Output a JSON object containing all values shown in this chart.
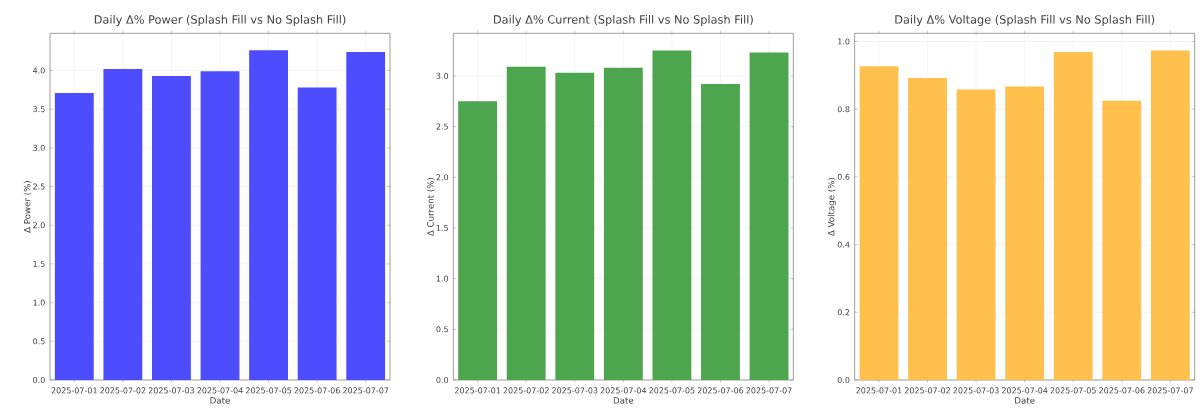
{
  "chart_data": [
    {
      "type": "bar",
      "title": "Daily Δ% Power (Splash Fill vs No Splash Fill)",
      "xlabel": "Date",
      "ylabel": "Δ Power (%)",
      "categories": [
        "2025-07-01",
        "2025-07-02",
        "2025-07-03",
        "2025-07-04",
        "2025-07-05",
        "2025-07-06",
        "2025-07-07"
      ],
      "values": [
        3.71,
        4.02,
        3.93,
        3.99,
        4.26,
        3.78,
        4.24
      ],
      "color": "#4d4dff",
      "ylim": [
        0,
        4.48
      ],
      "yticks": [
        {
          "value": 0,
          "label": "0.0"
        },
        0.5,
        {
          "value": 1,
          "label": "1.0"
        },
        1.5,
        {
          "value": 2,
          "label": "2.0"
        },
        2.5,
        {
          "value": 3,
          "label": "3.0"
        },
        3.5,
        {
          "value": 4,
          "label": "4.0"
        }
      ],
      "grid": true
    },
    {
      "type": "bar",
      "title": "Daily Δ% Current (Splash Fill vs No Splash Fill)",
      "xlabel": "Date",
      "ylabel": "Δ Current (%)",
      "categories": [
        "2025-07-01",
        "2025-07-02",
        "2025-07-03",
        "2025-07-04",
        "2025-07-05",
        "2025-07-06",
        "2025-07-07"
      ],
      "values": [
        2.75,
        3.09,
        3.03,
        3.08,
        3.25,
        2.92,
        3.23
      ],
      "color": "#4da64d",
      "ylim": [
        0,
        3.42
      ],
      "yticks": [
        {
          "value": 0,
          "label": "0.0"
        },
        0.5,
        {
          "value": 1,
          "label": "1.0"
        },
        1.5,
        {
          "value": 2,
          "label": "2.0"
        },
        2.5,
        {
          "value": 3,
          "label": "3.0"
        }
      ],
      "grid": true
    },
    {
      "type": "bar",
      "title": "Daily Δ% Voltage (Splash Fill vs No Splash Fill)",
      "xlabel": "Date",
      "ylabel": "Δ Voltage (%)",
      "categories": [
        "2025-07-01",
        "2025-07-02",
        "2025-07-03",
        "2025-07-04",
        "2025-07-05",
        "2025-07-06",
        "2025-07-07"
      ],
      "values": [
        0.927,
        0.892,
        0.858,
        0.867,
        0.969,
        0.825,
        0.973
      ],
      "color": "#ffc04d",
      "ylim": [
        0,
        1.024
      ],
      "yticks": [
        {
          "value": 0,
          "label": "0.0"
        },
        0.2,
        0.4,
        0.6,
        0.8,
        {
          "value": 1,
          "label": "1.0"
        }
      ],
      "grid": true
    }
  ]
}
